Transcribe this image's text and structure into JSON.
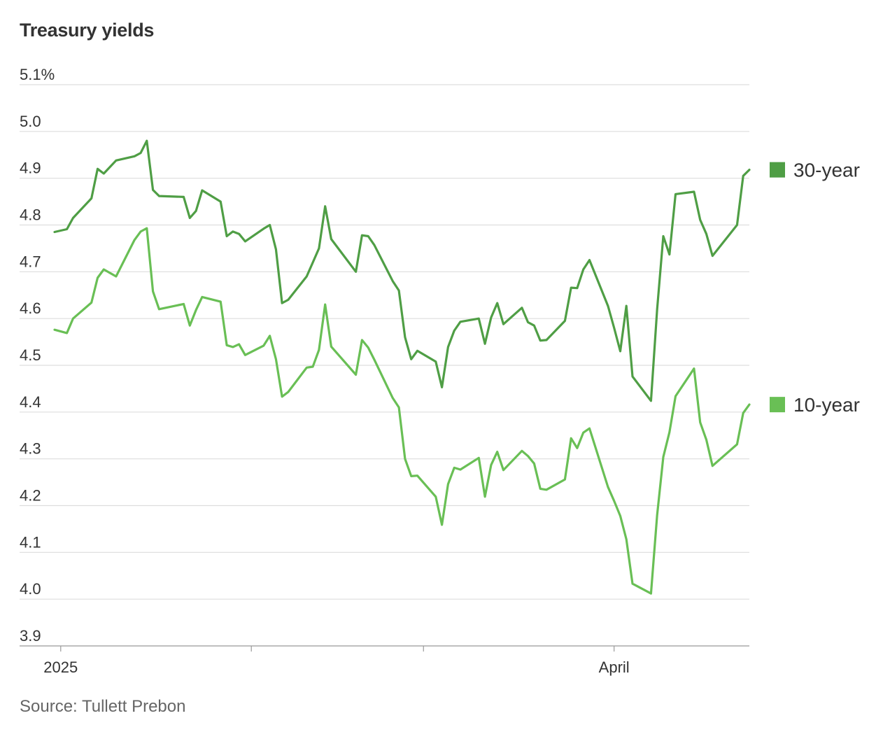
{
  "title": "Treasury yields",
  "source": "Source: Tullett Prebon",
  "colors": {
    "30-year": "#4f9e45",
    "10-year": "#69bf55",
    "grid": "#dddddd",
    "axis": "#999999"
  },
  "chart_data": {
    "type": "line",
    "title": "Treasury yields",
    "x_start": "2024-12-31",
    "x_end": "2025-04-23",
    "ylim": [
      3.9,
      5.1
    ],
    "y_ticks": [
      {
        "value": 5.1,
        "label": "5.1%"
      },
      {
        "value": 5.0,
        "label": "5.0"
      },
      {
        "value": 4.9,
        "label": "4.9"
      },
      {
        "value": 4.8,
        "label": "4.8"
      },
      {
        "value": 4.7,
        "label": "4.7"
      },
      {
        "value": 4.6,
        "label": "4.6"
      },
      {
        "value": 4.5,
        "label": "4.5"
      },
      {
        "value": 4.4,
        "label": "4.4"
      },
      {
        "value": 4.3,
        "label": "4.3"
      },
      {
        "value": 4.2,
        "label": "4.2"
      },
      {
        "value": 4.1,
        "label": "4.1"
      },
      {
        "value": 4.0,
        "label": "4.0"
      },
      {
        "value": 3.9,
        "label": "3.9"
      }
    ],
    "x_ticks": [
      {
        "date": "2025-01-01",
        "label": "2025"
      },
      {
        "date": "2025-02-01",
        "label": ""
      },
      {
        "date": "2025-03-01",
        "label": ""
      },
      {
        "date": "2025-04-01",
        "label": "April"
      }
    ],
    "grid": true,
    "legend": "right",
    "series": [
      {
        "name": "30-year",
        "points": [
          [
            "2024-12-31",
            4.785
          ],
          [
            "2025-01-02",
            4.791
          ],
          [
            "2025-01-03",
            4.815
          ],
          [
            "2025-01-06",
            4.857
          ],
          [
            "2025-01-07",
            4.92
          ],
          [
            "2025-01-08",
            4.91
          ],
          [
            "2025-01-10",
            4.938
          ],
          [
            "2025-01-13",
            4.947
          ],
          [
            "2025-01-14",
            4.954
          ],
          [
            "2025-01-15",
            4.98
          ],
          [
            "2025-01-16",
            4.875
          ],
          [
            "2025-01-17",
            4.862
          ],
          [
            "2025-01-21",
            4.86
          ],
          [
            "2025-01-22",
            4.815
          ],
          [
            "2025-01-23",
            4.83
          ],
          [
            "2025-01-24",
            4.874
          ],
          [
            "2025-01-27",
            4.85
          ],
          [
            "2025-01-28",
            4.776
          ],
          [
            "2025-01-29",
            4.786
          ],
          [
            "2025-01-30",
            4.781
          ],
          [
            "2025-01-31",
            4.765
          ],
          [
            "2025-02-03",
            4.792
          ],
          [
            "2025-02-04",
            4.8
          ],
          [
            "2025-02-05",
            4.748
          ],
          [
            "2025-02-06",
            4.633
          ],
          [
            "2025-02-07",
            4.64
          ],
          [
            "2025-02-10",
            4.69
          ],
          [
            "2025-02-11",
            4.72
          ],
          [
            "2025-02-12",
            4.75
          ],
          [
            "2025-02-13",
            4.84
          ],
          [
            "2025-02-14",
            4.77
          ],
          [
            "2025-02-18",
            4.7
          ],
          [
            "2025-02-19",
            4.778
          ],
          [
            "2025-02-20",
            4.776
          ],
          [
            "2025-02-21",
            4.757
          ],
          [
            "2025-02-24",
            4.68
          ],
          [
            "2025-02-25",
            4.66
          ],
          [
            "2025-02-26",
            4.56
          ],
          [
            "2025-02-27",
            4.513
          ],
          [
            "2025-02-28",
            4.531
          ],
          [
            "2025-03-03",
            4.508
          ],
          [
            "2025-03-04",
            4.453
          ],
          [
            "2025-03-05",
            4.539
          ],
          [
            "2025-03-06",
            4.574
          ],
          [
            "2025-03-07",
            4.593
          ],
          [
            "2025-03-10",
            4.6
          ],
          [
            "2025-03-11",
            4.546
          ],
          [
            "2025-03-12",
            4.602
          ],
          [
            "2025-03-13",
            4.633
          ],
          [
            "2025-03-14",
            4.588
          ],
          [
            "2025-03-17",
            4.623
          ],
          [
            "2025-03-18",
            4.592
          ],
          [
            "2025-03-19",
            4.585
          ],
          [
            "2025-03-20",
            4.553
          ],
          [
            "2025-03-21",
            4.554
          ],
          [
            "2025-03-24",
            4.595
          ],
          [
            "2025-03-25",
            4.666
          ],
          [
            "2025-03-26",
            4.665
          ],
          [
            "2025-03-27",
            4.705
          ],
          [
            "2025-03-28",
            4.725
          ],
          [
            "2025-03-31",
            4.627
          ],
          [
            "2025-04-01",
            4.58
          ],
          [
            "2025-04-02",
            4.53
          ],
          [
            "2025-04-03",
            4.627
          ],
          [
            "2025-04-04",
            4.476
          ],
          [
            "2025-04-07",
            4.424
          ],
          [
            "2025-04-08",
            4.62
          ],
          [
            "2025-04-09",
            4.776
          ],
          [
            "2025-04-10",
            4.737
          ],
          [
            "2025-04-11",
            4.866
          ],
          [
            "2025-04-14",
            4.871
          ],
          [
            "2025-04-15",
            4.811
          ],
          [
            "2025-04-16",
            4.781
          ],
          [
            "2025-04-17",
            4.734
          ],
          [
            "2025-04-21",
            4.8
          ],
          [
            "2025-04-22",
            4.905
          ],
          [
            "2025-04-23",
            4.918
          ]
        ]
      },
      {
        "name": "10-year",
        "points": [
          [
            "2024-12-31",
            4.576
          ],
          [
            "2025-01-02",
            4.569
          ],
          [
            "2025-01-03",
            4.6
          ],
          [
            "2025-01-06",
            4.634
          ],
          [
            "2025-01-07",
            4.687
          ],
          [
            "2025-01-08",
            4.705
          ],
          [
            "2025-01-10",
            4.69
          ],
          [
            "2025-01-13",
            4.768
          ],
          [
            "2025-01-14",
            4.786
          ],
          [
            "2025-01-15",
            4.793
          ],
          [
            "2025-01-16",
            4.658
          ],
          [
            "2025-01-17",
            4.62
          ],
          [
            "2025-01-21",
            4.631
          ],
          [
            "2025-01-22",
            4.585
          ],
          [
            "2025-01-23",
            4.618
          ],
          [
            "2025-01-24",
            4.646
          ],
          [
            "2025-01-27",
            4.636
          ],
          [
            "2025-01-28",
            4.543
          ],
          [
            "2025-01-29",
            4.539
          ],
          [
            "2025-01-30",
            4.545
          ],
          [
            "2025-01-31",
            4.522
          ],
          [
            "2025-02-03",
            4.542
          ],
          [
            "2025-02-04",
            4.563
          ],
          [
            "2025-02-05",
            4.513
          ],
          [
            "2025-02-06",
            4.433
          ],
          [
            "2025-02-07",
            4.443
          ],
          [
            "2025-02-10",
            4.495
          ],
          [
            "2025-02-11",
            4.497
          ],
          [
            "2025-02-12",
            4.533
          ],
          [
            "2025-02-13",
            4.63
          ],
          [
            "2025-02-14",
            4.54
          ],
          [
            "2025-02-18",
            4.48
          ],
          [
            "2025-02-19",
            4.554
          ],
          [
            "2025-02-20",
            4.538
          ],
          [
            "2025-02-21",
            4.512
          ],
          [
            "2025-02-24",
            4.43
          ],
          [
            "2025-02-25",
            4.41
          ],
          [
            "2025-02-26",
            4.3
          ],
          [
            "2025-02-27",
            4.263
          ],
          [
            "2025-02-28",
            4.264
          ],
          [
            "2025-03-03",
            4.219
          ],
          [
            "2025-03-04",
            4.159
          ],
          [
            "2025-03-05",
            4.246
          ],
          [
            "2025-03-06",
            4.281
          ],
          [
            "2025-03-07",
            4.277
          ],
          [
            "2025-03-10",
            4.302
          ],
          [
            "2025-03-11",
            4.219
          ],
          [
            "2025-03-12",
            4.287
          ],
          [
            "2025-03-13",
            4.315
          ],
          [
            "2025-03-14",
            4.276
          ],
          [
            "2025-03-17",
            4.317
          ],
          [
            "2025-03-18",
            4.306
          ],
          [
            "2025-03-19",
            4.29
          ],
          [
            "2025-03-20",
            4.236
          ],
          [
            "2025-03-21",
            4.234
          ],
          [
            "2025-03-24",
            4.256
          ],
          [
            "2025-03-25",
            4.344
          ],
          [
            "2025-03-26",
            4.323
          ],
          [
            "2025-03-27",
            4.356
          ],
          [
            "2025-03-28",
            4.365
          ],
          [
            "2025-03-31",
            4.24
          ],
          [
            "2025-04-01",
            4.21
          ],
          [
            "2025-04-02",
            4.178
          ],
          [
            "2025-04-03",
            4.128
          ],
          [
            "2025-04-04",
            4.033
          ],
          [
            "2025-04-07",
            4.012
          ],
          [
            "2025-04-08",
            4.18
          ],
          [
            "2025-04-09",
            4.304
          ],
          [
            "2025-04-10",
            4.357
          ],
          [
            "2025-04-11",
            4.434
          ],
          [
            "2025-04-14",
            4.493
          ],
          [
            "2025-04-15",
            4.378
          ],
          [
            "2025-04-16",
            4.341
          ],
          [
            "2025-04-17",
            4.285
          ],
          [
            "2025-04-21",
            4.331
          ],
          [
            "2025-04-22",
            4.398
          ],
          [
            "2025-04-23",
            4.416
          ]
        ]
      }
    ]
  }
}
